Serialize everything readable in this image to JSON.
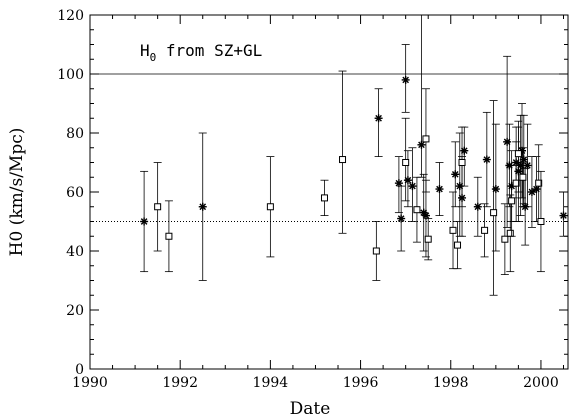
{
  "chart_data": {
    "type": "scatter",
    "xlabel": "Date",
    "ylabel": "H0 (km/s/Mpc)",
    "annotation": {
      "prefix": "H",
      "sub": "0",
      "text": " from SZ+GL"
    },
    "xlim": [
      1990,
      2000.6
    ],
    "ylim": [
      0,
      120
    ],
    "x_ticks": [
      1990,
      1992,
      1994,
      1996,
      1998,
      2000
    ],
    "y_ticks": [
      0,
      20,
      40,
      60,
      80,
      100,
      120
    ],
    "reference_lines": [
      {
        "y": 100,
        "style": "solid"
      },
      {
        "y": 50,
        "style": "dotted"
      }
    ],
    "series": [
      {
        "marker": "asterisk",
        "points": [
          {
            "x": 1991.2,
            "y": 50,
            "lo": 33,
            "hi": 67
          },
          {
            "x": 1992.5,
            "y": 55,
            "lo": 30,
            "hi": 80
          },
          {
            "x": 1996.4,
            "y": 85,
            "lo": 72,
            "hi": 95
          },
          {
            "x": 1996.85,
            "y": 63,
            "lo": 53,
            "hi": 72
          },
          {
            "x": 1996.9,
            "y": 51,
            "lo": 40,
            "hi": 62
          },
          {
            "x": 1997.0,
            "y": 98,
            "lo": 87,
            "hi": 110
          },
          {
            "x": 1997.05,
            "y": 64,
            "lo": 55,
            "hi": 74
          },
          {
            "x": 1997.15,
            "y": 62,
            "lo": 50,
            "hi": 75
          },
          {
            "x": 1997.35,
            "y": 76,
            "lo": 65,
            "hi": 120
          },
          {
            "x": 1997.4,
            "y": 53,
            "lo": 40,
            "hi": 66
          },
          {
            "x": 1997.45,
            "y": 52,
            "lo": 38,
            "hi": 64
          },
          {
            "x": 1997.75,
            "y": 61,
            "lo": 52,
            "hi": 70
          },
          {
            "x": 1998.1,
            "y": 66,
            "lo": 55,
            "hi": 77
          },
          {
            "x": 1998.2,
            "y": 62,
            "lo": 45,
            "hi": 80
          },
          {
            "x": 1998.25,
            "y": 58,
            "lo": 45,
            "hi": 72
          },
          {
            "x": 1998.3,
            "y": 74,
            "lo": 62,
            "hi": 82
          },
          {
            "x": 1998.6,
            "y": 55,
            "lo": 45,
            "hi": 65
          },
          {
            "x": 1998.8,
            "y": 71,
            "lo": 55,
            "hi": 87
          },
          {
            "x": 1999.0,
            "y": 61,
            "lo": 40,
            "hi": 83
          },
          {
            "x": 1999.25,
            "y": 77,
            "lo": 48,
            "hi": 106
          },
          {
            "x": 1999.3,
            "y": 69,
            "lo": 55,
            "hi": 83
          },
          {
            "x": 1999.35,
            "y": 62,
            "lo": 50,
            "hi": 74
          },
          {
            "x": 1999.45,
            "y": 70,
            "lo": 58,
            "hi": 82
          },
          {
            "x": 1999.5,
            "y": 67,
            "lo": 50,
            "hi": 84
          },
          {
            "x": 1999.55,
            "y": 69,
            "lo": 52,
            "hi": 86
          },
          {
            "x": 1999.58,
            "y": 74,
            "lo": 58,
            "hi": 90
          },
          {
            "x": 1999.62,
            "y": 71,
            "lo": 56,
            "hi": 86
          },
          {
            "x": 1999.65,
            "y": 55,
            "lo": 42,
            "hi": 68
          },
          {
            "x": 1999.7,
            "y": 69,
            "lo": 55,
            "hi": 83
          },
          {
            "x": 1999.8,
            "y": 60,
            "lo": 48,
            "hi": 72
          },
          {
            "x": 1999.9,
            "y": 61,
            "lo": 50,
            "hi": 72
          },
          {
            "x": 2000.5,
            "y": 52,
            "lo": 45,
            "hi": 60
          }
        ]
      },
      {
        "marker": "square",
        "points": [
          {
            "x": 1991.5,
            "y": 55,
            "lo": 40,
            "hi": 70
          },
          {
            "x": 1991.75,
            "y": 45,
            "lo": 33,
            "hi": 57
          },
          {
            "x": 1994.0,
            "y": 55,
            "lo": 38,
            "hi": 72
          },
          {
            "x": 1995.2,
            "y": 58,
            "lo": 52,
            "hi": 64
          },
          {
            "x": 1995.6,
            "y": 71,
            "lo": 46,
            "hi": 101
          },
          {
            "x": 1996.35,
            "y": 40,
            "lo": 30,
            "hi": 50
          },
          {
            "x": 1997.0,
            "y": 70,
            "lo": 57,
            "hi": 85
          },
          {
            "x": 1997.25,
            "y": 54,
            "lo": 43,
            "hi": 65
          },
          {
            "x": 1997.45,
            "y": 78,
            "lo": 60,
            "hi": 95
          },
          {
            "x": 1997.5,
            "y": 44,
            "lo": 37,
            "hi": 51
          },
          {
            "x": 1998.05,
            "y": 47,
            "lo": 34,
            "hi": 60
          },
          {
            "x": 1998.15,
            "y": 42,
            "lo": 34,
            "hi": 50
          },
          {
            "x": 1998.25,
            "y": 70,
            "lo": 55,
            "hi": 82
          },
          {
            "x": 1998.75,
            "y": 47,
            "lo": 38,
            "hi": 56
          },
          {
            "x": 1998.95,
            "y": 53,
            "lo": 25,
            "hi": 91
          },
          {
            "x": 1999.2,
            "y": 44,
            "lo": 32,
            "hi": 56
          },
          {
            "x": 1999.32,
            "y": 46,
            "lo": 33,
            "hi": 59
          },
          {
            "x": 1999.35,
            "y": 57,
            "lo": 45,
            "hi": 69
          },
          {
            "x": 1999.45,
            "y": 63,
            "lo": 50,
            "hi": 77
          },
          {
            "x": 1999.5,
            "y": 73,
            "lo": 60,
            "hi": 82
          },
          {
            "x": 1999.6,
            "y": 65,
            "lo": 55,
            "hi": 75
          },
          {
            "x": 1999.95,
            "y": 63,
            "lo": 50,
            "hi": 76
          },
          {
            "x": 2000.0,
            "y": 50,
            "lo": 33,
            "hi": 67
          }
        ]
      }
    ]
  }
}
